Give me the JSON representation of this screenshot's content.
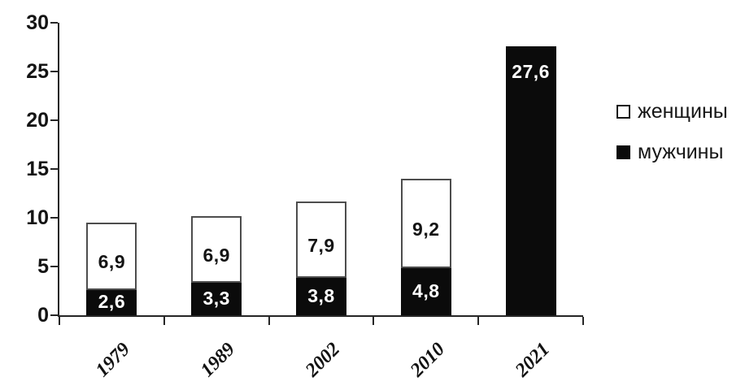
{
  "chart_data": {
    "type": "bar",
    "subtype": "stacked",
    "title": "",
    "categories": [
      "1979",
      "1989",
      "2002",
      "2010",
      "2021"
    ],
    "series": [
      {
        "name": "мужчины",
        "color": "#0b0b0b",
        "label_color": "#ffffff",
        "values": [
          2.6,
          3.3,
          3.8,
          4.8,
          27.6
        ]
      },
      {
        "name": "женщины",
        "color": "#ffffff",
        "border_color": "#4d4d4d",
        "label_color": "#141414",
        "values": [
          6.9,
          6.9,
          7.9,
          9.2,
          0
        ]
      }
    ],
    "data_labels": [
      "2,6",
      "3,3",
      "3,8",
      "4,8",
      "27,6",
      "6,9",
      "6,9",
      "7,9",
      "9,2"
    ],
    "decimal_separator": ",",
    "xlabel": "",
    "ylabel": "",
    "ylim": [
      0,
      30
    ],
    "yticks": [
      0,
      5,
      10,
      15,
      20,
      25,
      30
    ],
    "grid": false,
    "legend_position": "right",
    "legend": [
      {
        "label": "женщины",
        "swatch": "#ffffff",
        "swatch_border": "#161616"
      },
      {
        "label": "мужчины",
        "swatch": "#0b0b0b",
        "swatch_border": "#0b0b0b"
      }
    ],
    "axis_color": "#262626"
  }
}
